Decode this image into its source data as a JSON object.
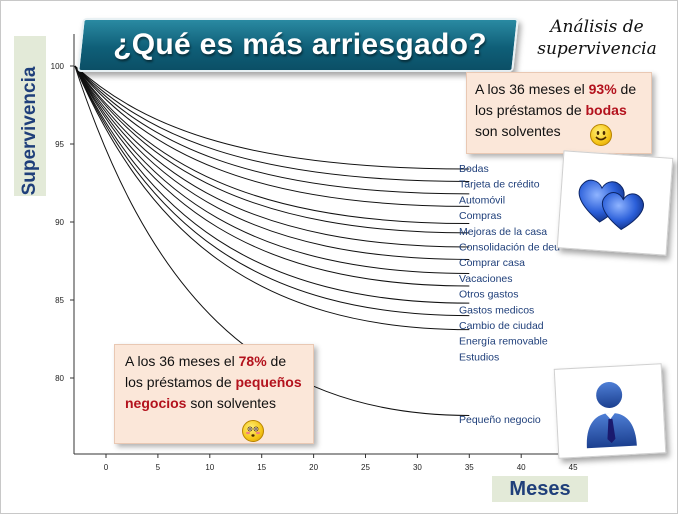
{
  "title": "¿Qué es más arriesgado?",
  "subtitle": "Análisis de supervivencia",
  "callout_top": {
    "pre": "A los 36 meses el ",
    "pct": "93%",
    "mid": " de los préstamos de ",
    "word": "bodas",
    "post": " son solventes"
  },
  "callout_bottom": {
    "pre": "A los 36 meses el ",
    "pct": "78%",
    "mid": " de los préstamos de ",
    "word": "pequeños negocios",
    "post": " son solventes"
  },
  "colors": {
    "accent": "#1f3f7a",
    "highlight": "#b3121d",
    "banner": "#0f5f78",
    "callout": "#fbe7d9",
    "label_box": "#e3ead8"
  },
  "icons": [
    "happy-face-icon",
    "blushing-face-icon",
    "hearts-icon",
    "person-icon"
  ],
  "chart_data": {
    "type": "line",
    "title": "¿Qué es más arriesgado?",
    "xlabel": "Meses",
    "ylabel": "Supervivencia",
    "xlim": [
      -3,
      46
    ],
    "ylim": [
      76,
      102
    ],
    "xticks": [
      0,
      5,
      10,
      15,
      20,
      25,
      30,
      35,
      40,
      45
    ],
    "yticks": [
      80,
      85,
      90,
      95,
      100
    ],
    "grid": false,
    "series": [
      {
        "name": "Bodas",
        "start": [
          -3,
          100
        ],
        "end": [
          35,
          93.4
        ]
      },
      {
        "name": "Tarjeta de crédito",
        "start": [
          -3,
          100
        ],
        "end": [
          35,
          92.6
        ]
      },
      {
        "name": "Automóvil",
        "start": [
          -3,
          100
        ],
        "end": [
          35,
          91.8
        ]
      },
      {
        "name": "Compras",
        "start": [
          -3,
          100
        ],
        "end": [
          35,
          91.0
        ]
      },
      {
        "name": "Mejoras de la casa",
        "start": [
          -3,
          100
        ],
        "end": [
          35,
          89.9
        ]
      },
      {
        "name": "Consolidación  de deu",
        "start": [
          -3,
          100
        ],
        "end": [
          35,
          89.3
        ]
      },
      {
        "name": "Comprar casa",
        "start": [
          -3,
          100
        ],
        "end": [
          35,
          88.4
        ]
      },
      {
        "name": "Vacaciones",
        "start": [
          -3,
          100
        ],
        "end": [
          35,
          87.6
        ]
      },
      {
        "name": "Otros gastos",
        "start": [
          -3,
          100
        ],
        "end": [
          35,
          86.7
        ]
      },
      {
        "name": "Gastos medicos",
        "start": [
          -3,
          100
        ],
        "end": [
          35,
          85.9
        ]
      },
      {
        "name": "Cambio de ciudad",
        "start": [
          -3,
          100
        ],
        "end": [
          35,
          84.8
        ]
      },
      {
        "name": "Energía removable",
        "start": [
          -3,
          100
        ],
        "end": [
          35,
          84.0
        ]
      },
      {
        "name": "Estudios",
        "start": [
          -3,
          100
        ],
        "end": [
          35,
          83.1
        ]
      },
      {
        "name": "Pequeño negocio",
        "start": [
          -3,
          100
        ],
        "end": [
          35,
          77.6
        ]
      }
    ]
  }
}
